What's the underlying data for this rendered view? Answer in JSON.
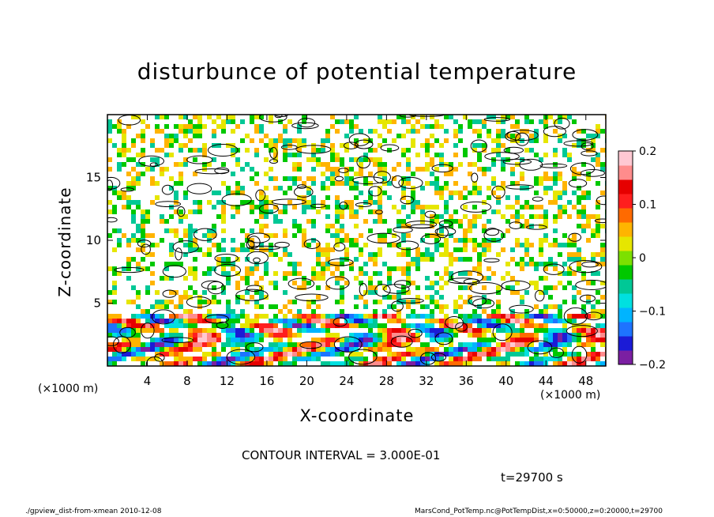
{
  "chart_data": {
    "type": "heatmap",
    "title": "disturbunce of potential temperature",
    "xlabel": "X-coordinate",
    "ylabel": "Z-coordinate",
    "x_unit_label_left": "(×1000 m)",
    "x_unit_label_right": "(×1000 m)",
    "xlim": [
      0,
      50
    ],
    "ylim": [
      0,
      20
    ],
    "x_ticks": [
      4,
      8,
      12,
      16,
      20,
      24,
      28,
      32,
      36,
      40,
      44,
      48
    ],
    "y_ticks": [
      5,
      10,
      15
    ],
    "colorbar": {
      "min": -0.2,
      "max": 0.2,
      "tick_labels": [
        "0.2",
        "0.1",
        "0",
        "−0.1",
        "−0.2"
      ],
      "tick_values": [
        0.2,
        0.1,
        0,
        -0.1,
        -0.2
      ],
      "colors": [
        "#7b1fa2",
        "#1b1bd6",
        "#1e73ff",
        "#00b4ff",
        "#00e0e0",
        "#00c896",
        "#00c800",
        "#7de000",
        "#e6e600",
        "#ffb400",
        "#ff6a00",
        "#ff1e1e",
        "#e60000",
        "#ff8c8c",
        "#ffc8d2"
      ]
    },
    "contour_interval": "CONTOUR INTERVAL = 3.000E-01",
    "time": "t=29700 s"
  },
  "footer": {
    "left": "./gpview_dist-from-xmean 2010-12-08",
    "right": "MarsCond_PotTemp.nc@PotTempDist,x=0:50000,z=0:20000,t=29700"
  }
}
